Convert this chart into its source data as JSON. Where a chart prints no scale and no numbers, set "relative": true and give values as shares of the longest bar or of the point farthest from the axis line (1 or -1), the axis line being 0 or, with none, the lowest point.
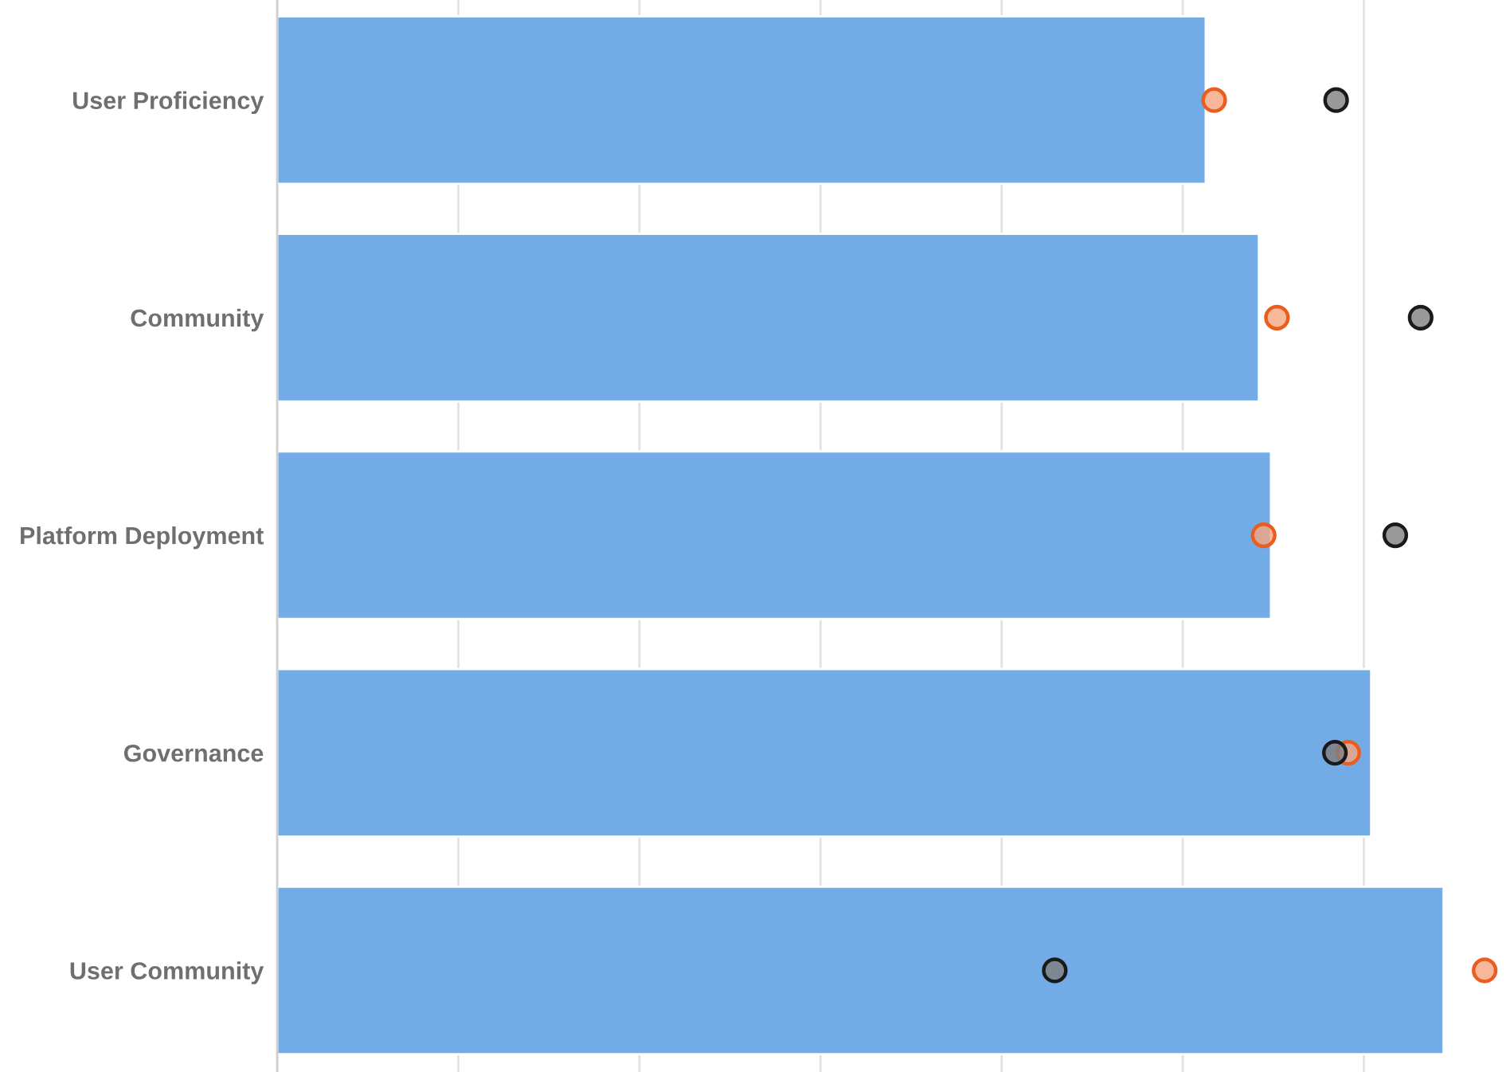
{
  "chart_data": {
    "type": "bar",
    "orientation": "horizontal",
    "relative": true,
    "categories": [
      "User Proficiency",
      "Community",
      "Platform Deployment",
      "Governance",
      "User Community"
    ],
    "series": [
      {
        "color": "#72abe5",
        "values": [
          0.769,
          0.813,
          0.823,
          0.906,
          0.966
        ]
      },
      {
        "type": "scatter",
        "color": "#f4a582",
        "values": [
          0.776,
          0.828,
          0.817,
          0.887,
          1
        ]
      },
      {
        "type": "scatter",
        "color": "#808080",
        "values": [
          0.877,
          0.947,
          0.926,
          0.876,
          0.644
        ]
      }
    ],
    "grid": "x",
    "marker": "circle"
  }
}
